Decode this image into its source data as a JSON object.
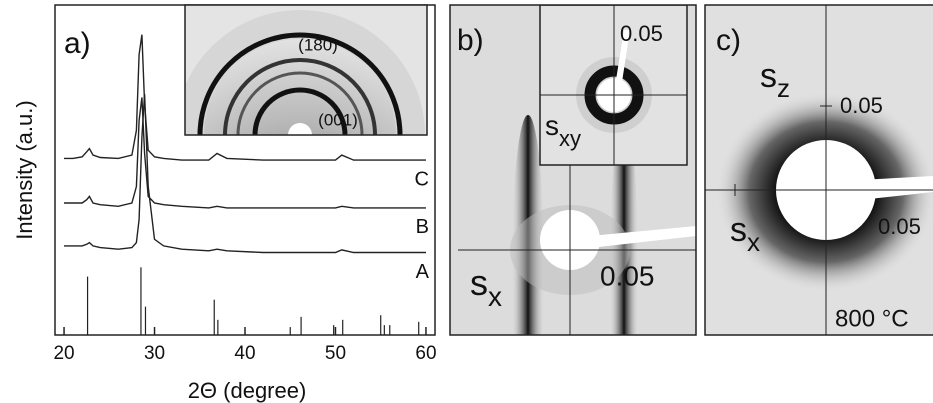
{
  "chart_data": {
    "type": "line",
    "panel_label": "a)",
    "xlabel": "2Θ (degree)",
    "ylabel": "Intensity (a.u.)",
    "x": [
      20,
      21,
      22,
      22.5,
      22.8,
      23.2,
      24,
      26,
      27.5,
      28,
      28.3,
      28.6,
      28.9,
      29.3,
      30,
      31,
      33,
      36,
      36.9,
      38,
      42,
      46,
      50,
      50.7,
      52,
      56,
      59,
      60
    ],
    "series": [
      {
        "name": "A",
        "color": "#222222",
        "values": [
          27,
          27,
          27,
          27.5,
          28,
          27,
          26.5,
          26,
          26.5,
          28,
          35,
          60,
          73,
          45,
          29,
          27,
          26,
          25.5,
          26,
          25.5,
          25,
          25,
          25,
          25.8,
          25,
          25,
          25,
          25
        ]
      },
      {
        "name": "B",
        "color": "#222222",
        "values": [
          40,
          40,
          40,
          41,
          42,
          40,
          39.5,
          39,
          40,
          45,
          65,
          72,
          55,
          42,
          40,
          39.5,
          39,
          38.5,
          39,
          38.5,
          38.5,
          38.5,
          38.5,
          39,
          38.5,
          38.5,
          38.5,
          38.5
        ]
      },
      {
        "name": "C",
        "color": "#222222",
        "values": [
          53.5,
          53.5,
          54,
          55.5,
          56.5,
          54.5,
          53.8,
          53.5,
          54.5,
          62,
          85,
          91,
          70,
          56,
          54,
          53.5,
          53,
          53,
          55,
          53.5,
          53,
          53,
          53,
          54.5,
          53,
          53,
          53,
          53
        ]
      }
    ],
    "reference_lines": {
      "x": [
        22.6,
        28.5,
        29.0,
        36.6,
        37.0,
        45.0,
        46.2,
        49.8,
        50.8,
        55.0,
        55.4,
        56.0,
        59.2
      ],
      "values": [
        17.7,
        20.5,
        8.6,
        10.7,
        4.6,
        2.4,
        5.5,
        3,
        4.6,
        6,
        3,
        3,
        4
      ]
    },
    "xlim": [
      19,
      61
    ],
    "xticks": [
      20,
      30,
      40,
      50,
      60
    ],
    "ylim": [
      0,
      100
    ],
    "inset_labels": [
      "(180)",
      "(001)"
    ]
  },
  "panel_b": {
    "label": "b)",
    "inset_scale": "0.05",
    "inset_axis": {
      "symbol": "s",
      "subscript": "xy"
    },
    "axis": {
      "symbol": "s",
      "subscript": "x"
    },
    "scale": "0.05"
  },
  "panel_c": {
    "label": "c)",
    "axis_z": {
      "symbol": "s",
      "subscript": "z"
    },
    "scale_z": "0.05",
    "axis_x": {
      "symbol": "s",
      "subscript": "x"
    },
    "scale_x": "0.05",
    "temperature": "800 °C"
  }
}
